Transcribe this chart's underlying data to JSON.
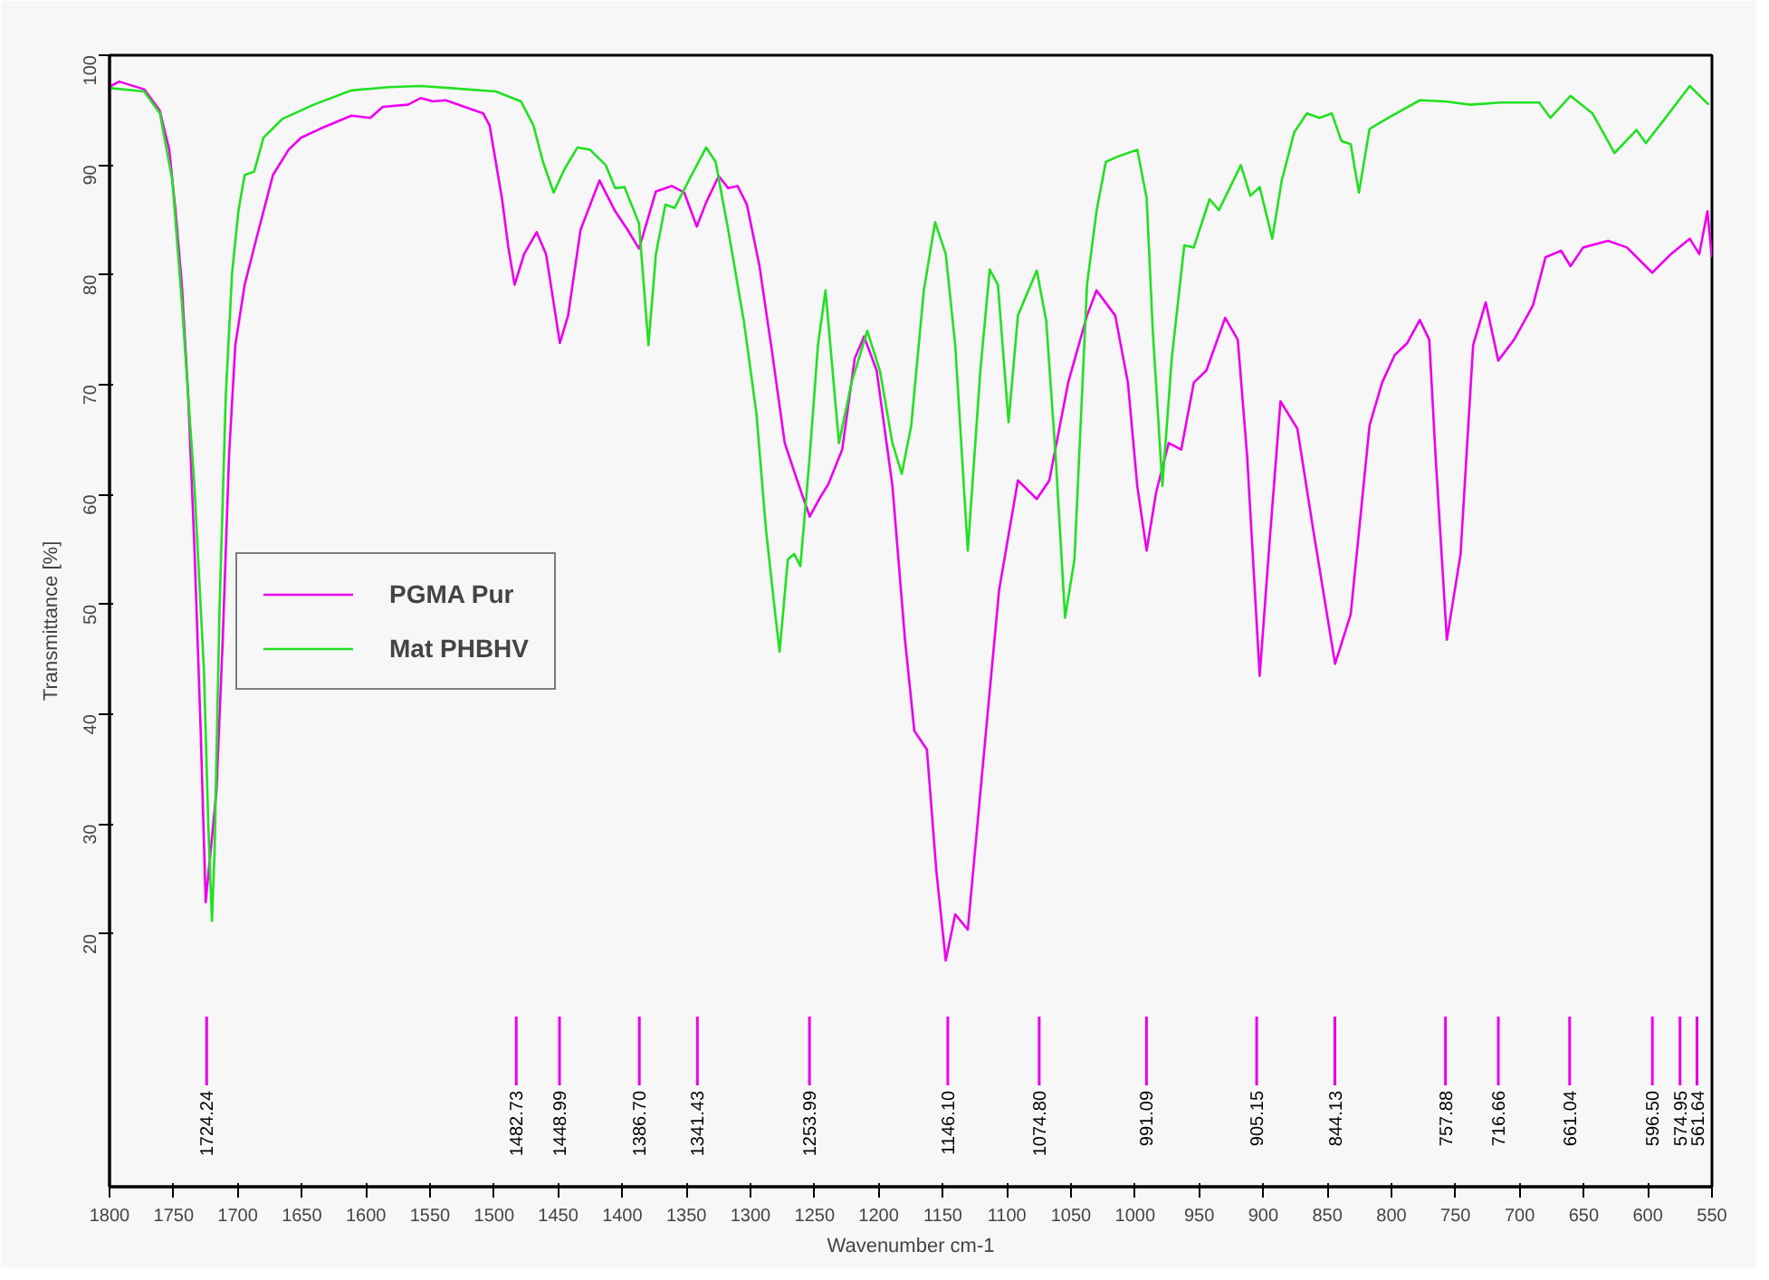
{
  "chart_data": {
    "type": "line",
    "xlabel": "Wavenumber cm-1",
    "ylabel": "Transmittance [%]",
    "xlim": [
      1800,
      550
    ],
    "ylim": [
      -3,
      100
    ],
    "xticks": [
      1800,
      1750,
      1700,
      1650,
      1600,
      1550,
      1500,
      1450,
      1400,
      1350,
      1300,
      1250,
      1200,
      1150,
      1100,
      1050,
      1000,
      950,
      900,
      850,
      800,
      750,
      700,
      650,
      600,
      550
    ],
    "yticks": [
      20,
      30,
      40,
      50,
      60,
      70,
      80,
      90,
      100
    ],
    "grid": false,
    "legend": "left",
    "marker": "none",
    "line_style": "solid",
    "series": [
      {
        "name": "PGMA Pur",
        "color": "#f000f0",
        "x": [
          1799,
          1792.5,
          1773,
          1761,
          1753.4,
          1748.5,
          1743.6,
          1738.7,
          1733.8,
          1728.9,
          1725,
          1716.6,
          1711.7,
          1706.8,
          1701.9,
          1694.6,
          1684.8,
          1672.5,
          1660.3,
          1650.5,
          1635.8,
          1611.3,
          1596.6,
          1586.8,
          1567.2,
          1557.4,
          1547.6,
          1537.8,
          1523.1,
          1508.5,
          1503.5,
          1493.8,
          1488.9,
          1484,
          1476.6,
          1466.8,
          1459.5,
          1448.7,
          1442.3,
          1432.6,
          1417.8,
          1405.6,
          1395.8,
          1387,
          1381.1,
          1373.8,
          1361.5,
          1351.7,
          1341.9,
          1334.6,
          1324.8,
          1317.4,
          1310.1,
          1302.8,
          1293,
          1283.2,
          1273.3,
          1263.6,
          1253.8,
          1246.4,
          1239.1,
          1228.5,
          1218.7,
          1211.4,
          1201.6,
          1189.3,
          1179.5,
          1172.2,
          1162.4,
          1155,
          1147.7,
          1140.3,
          1130.5,
          1120.7,
          1106.1,
          1091.4,
          1076.7,
          1066.9,
          1052.2,
          1037.5,
          1030.1,
          1015.5,
          1005.6,
          998.3,
          991,
          983.6,
          973.8,
          964,
          954.2,
          944.4,
          929.7,
          919.9,
          912.6,
          902.8,
          895.4,
          886.6,
          873.4,
          861.2,
          844,
          831.8,
          817.1,
          807.3,
          797.5,
          787.7,
          777.9,
          770.5,
          765.6,
          756.8,
          746.1,
          736.3,
          726.5,
          716.7,
          704.4,
          689.7,
          679.9,
          667.7,
          660.3,
          650.5,
          631,
          616.3,
          596.6,
          582,
          567.3,
          559.9,
          553.5,
          550.1
        ],
        "values": [
          97.2,
          97.6,
          96.9,
          95,
          91.4,
          85.8,
          79.1,
          69.1,
          55.2,
          38.5,
          22.9,
          33,
          46.8,
          63.5,
          73.6,
          79.1,
          83.6,
          89.1,
          91.4,
          92.5,
          93.3,
          94.5,
          94.3,
          95.3,
          95.5,
          96.1,
          95.8,
          95.9,
          95.3,
          94.7,
          93.6,
          86.9,
          82.5,
          79.1,
          81.9,
          83.9,
          81.9,
          73.8,
          76.3,
          84.1,
          88.6,
          85.8,
          84.1,
          82.4,
          84.7,
          87.6,
          88.1,
          87.5,
          84.4,
          86.6,
          89,
          87.9,
          88.1,
          86.4,
          80.8,
          73,
          64.7,
          61.3,
          58,
          59.6,
          61,
          64.1,
          72.4,
          74.4,
          71.3,
          60.8,
          46.8,
          38.5,
          36.8,
          25.7,
          17.6,
          21.8,
          20.4,
          32.9,
          51.3,
          61.3,
          59.6,
          61.3,
          70.2,
          76.3,
          78.6,
          76.3,
          70.2,
          60.8,
          54.9,
          60.2,
          64.7,
          64.1,
          70.2,
          71.3,
          76.1,
          74.1,
          63.5,
          43.5,
          55.2,
          68.5,
          66,
          56.9,
          44.6,
          49.1,
          66.3,
          70.2,
          72.7,
          73.8,
          75.9,
          74.1,
          63.5,
          46.8,
          54.6,
          73.6,
          77.5,
          72.2,
          74.1,
          77.2,
          81.6,
          82.2,
          80.8,
          82.5,
          83.1,
          82.5,
          80.2,
          81.9,
          83.3,
          81.9,
          85.8,
          81.6
        ]
      },
      {
        "name": "Mat PHBHV",
        "color": "#22e022",
        "x": [
          1799,
          1773,
          1760.7,
          1751,
          1743.6,
          1733.8,
          1726.4,
          1723,
          1720.1,
          1718.1,
          1714.2,
          1709.3,
          1704.4,
          1699.5,
          1694.6,
          1687.2,
          1679.9,
          1665.2,
          1640.7,
          1611.3,
          1582,
          1557.4,
          1533,
          1498.7,
          1479.1,
          1469.3,
          1461.9,
          1453.6,
          1444.8,
          1435,
          1425.2,
          1413,
          1405.6,
          1398.3,
          1387,
          1379.6,
          1373.8,
          1366.4,
          1359.1,
          1346.8,
          1334.6,
          1327.2,
          1317.4,
          1305.2,
          1295.4,
          1288,
          1280.7,
          1277.3,
          1270.9,
          1266,
          1261.1,
          1253.8,
          1247.4,
          1241.5,
          1231,
          1221.2,
          1208.9,
          1199.1,
          1189.3,
          1182,
          1174.6,
          1164.8,
          1156,
          1147.7,
          1140.3,
          1130.5,
          1120.7,
          1113.4,
          1107,
          1098.7,
          1091.4,
          1076.7,
          1069.3,
          1062,
          1054.6,
          1047.3,
          1037.5,
          1030.1,
          1022.8,
          1013,
          998.3,
          991,
          986.1,
          978.7,
          971.4,
          961.6,
          954.2,
          941.9,
          934.6,
          917.5,
          910.1,
          902.8,
          893,
          885.6,
          875.8,
          866,
          856.2,
          846.5,
          839.1,
          831.8,
          825.4,
          817.1,
          802.4,
          777.9,
          758.3,
          738.7,
          714.2,
          684.8,
          676,
          660.3,
          643.2,
          626,
          608.9,
          601.6,
          586.9,
          567.3,
          552.6
        ],
        "values": [
          97,
          96.7,
          94.7,
          88.6,
          77.5,
          60.8,
          44.1,
          30.1,
          21.2,
          27.4,
          49.6,
          69.1,
          80.2,
          85.8,
          89.1,
          89.4,
          92.5,
          94.2,
          95.5,
          96.8,
          97.1,
          97.2,
          97,
          96.7,
          95.8,
          93.6,
          90.3,
          87.5,
          89.7,
          91.6,
          91.4,
          90,
          87.9,
          88,
          84.7,
          73.6,
          81.9,
          86.4,
          86.1,
          88.9,
          91.6,
          90.3,
          84.1,
          75.8,
          67.4,
          56.9,
          49.1,
          45.7,
          54.1,
          54.6,
          53.5,
          63.5,
          73.6,
          78.6,
          64.7,
          70.2,
          74.9,
          71.3,
          64.7,
          61.9,
          66.3,
          78.6,
          84.8,
          81.9,
          73.6,
          54.9,
          71.3,
          80.5,
          79.1,
          66.6,
          76.3,
          80.4,
          75.8,
          63.5,
          48.8,
          54.1,
          79.1,
          85.8,
          90.3,
          90.8,
          91.4,
          87,
          74.7,
          60.8,
          72.4,
          82.7,
          82.5,
          86.9,
          85.9,
          90,
          87.2,
          88,
          83.3,
          88.6,
          93,
          94.7,
          94.3,
          94.7,
          92.2,
          91.9,
          87.5,
          93.3,
          94.3,
          95.9,
          95.8,
          95.5,
          95.7,
          95.7,
          94.3,
          96.3,
          94.7,
          91.1,
          93.2,
          92,
          94.2,
          97.2,
          95.5
        ]
      }
    ],
    "ref_lines": [
      {
        "axis": "x",
        "value": 1724.24,
        "label": "1724.24",
        "color": "#f000f0"
      },
      {
        "axis": "x",
        "value": 1482.73,
        "label": "1482.73",
        "color": "#f000f0"
      },
      {
        "axis": "x",
        "value": 1448.99,
        "label": "1448.99",
        "color": "#f000f0"
      },
      {
        "axis": "x",
        "value": 1386.7,
        "label": "1386.70",
        "color": "#f000f0"
      },
      {
        "axis": "x",
        "value": 1341.43,
        "label": "1341.43",
        "color": "#f000f0"
      },
      {
        "axis": "x",
        "value": 1253.99,
        "label": "1253.99",
        "color": "#f000f0"
      },
      {
        "axis": "x",
        "value": 1146.1,
        "label": "1146.10",
        "color": "#f000f0"
      },
      {
        "axis": "x",
        "value": 1074.8,
        "label": "1074.80",
        "color": "#f000f0"
      },
      {
        "axis": "x",
        "value": 991.09,
        "label": "991.09",
        "color": "#f000f0"
      },
      {
        "axis": "x",
        "value": 905.15,
        "label": "905.15",
        "color": "#f000f0"
      },
      {
        "axis": "x",
        "value": 844.13,
        "label": "844.13",
        "color": "#f000f0"
      },
      {
        "axis": "x",
        "value": 757.88,
        "label": "757.88",
        "color": "#f000f0"
      },
      {
        "axis": "x",
        "value": 716.66,
        "label": "716.66",
        "color": "#f000f0"
      },
      {
        "axis": "x",
        "value": 661.04,
        "label": "661.04",
        "color": "#f000f0"
      },
      {
        "axis": "x",
        "value": 596.5,
        "label": "596.50",
        "color": "#f000f0"
      },
      {
        "axis": "x",
        "value": 574.95,
        "label": "574.95",
        "color": "#f000f0"
      },
      {
        "axis": "x",
        "value": 561.64,
        "label": "561.64",
        "color": "#f000f0"
      }
    ]
  }
}
